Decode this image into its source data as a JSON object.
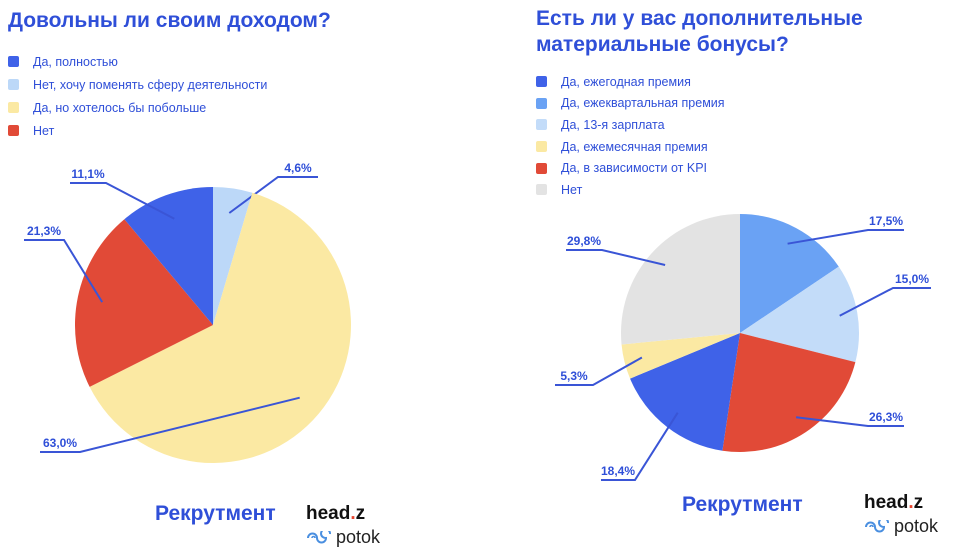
{
  "chart_data": [
    {
      "type": "pie",
      "title": "Довольны ли своим доходом?",
      "slices": [
        {
          "label": "Да, полностью",
          "value": 11.1,
          "value_label": "11,1%",
          "color": "#3f62e8"
        },
        {
          "label": "Нет, хочу поменять сферу деятельности",
          "value": 4.6,
          "value_label": "4,6%",
          "color": "#bcd8f8"
        },
        {
          "label": "Да, но хотелось бы побольше",
          "value": 63.0,
          "value_label": "63,0%",
          "color": "#fbe9a3"
        },
        {
          "label": "Нет",
          "value": 21.3,
          "value_label": "21,3%",
          "color": "#e14a37"
        }
      ],
      "legend_position": "top-left",
      "section_label": "Рекрутмент"
    },
    {
      "type": "pie",
      "title": "Есть ли у вас дополнительные материальные бонусы?",
      "slices": [
        {
          "label": "Да, ежегодная премия",
          "value": 18.4,
          "value_label": "18,4%",
          "color": "#3f62e8"
        },
        {
          "label": "Да, ежеквартальная премия",
          "value": 17.5,
          "value_label": "17,5%",
          "color": "#6aa2f4"
        },
        {
          "label": "Да, 13-я зарплата",
          "value": 15.0,
          "value_label": "15,0%",
          "color": "#c3dcf9"
        },
        {
          "label": "Да, ежемесячная премия",
          "value": 5.3,
          "value_label": "5,3%",
          "color": "#fbe9a3"
        },
        {
          "label": "Да, в зависимости от KPI",
          "value": 26.3,
          "value_label": "26,3%",
          "color": "#e14a37"
        },
        {
          "label": "Нет",
          "value": 29.8,
          "value_label": "29,8%",
          "color": "#e3e3e3"
        }
      ],
      "legend_position": "top-left",
      "section_label": "Рекрутмент"
    }
  ],
  "brand": {
    "name_main": "head",
    "name_dot": ".",
    "name_end": "z",
    "sub": "potok"
  }
}
